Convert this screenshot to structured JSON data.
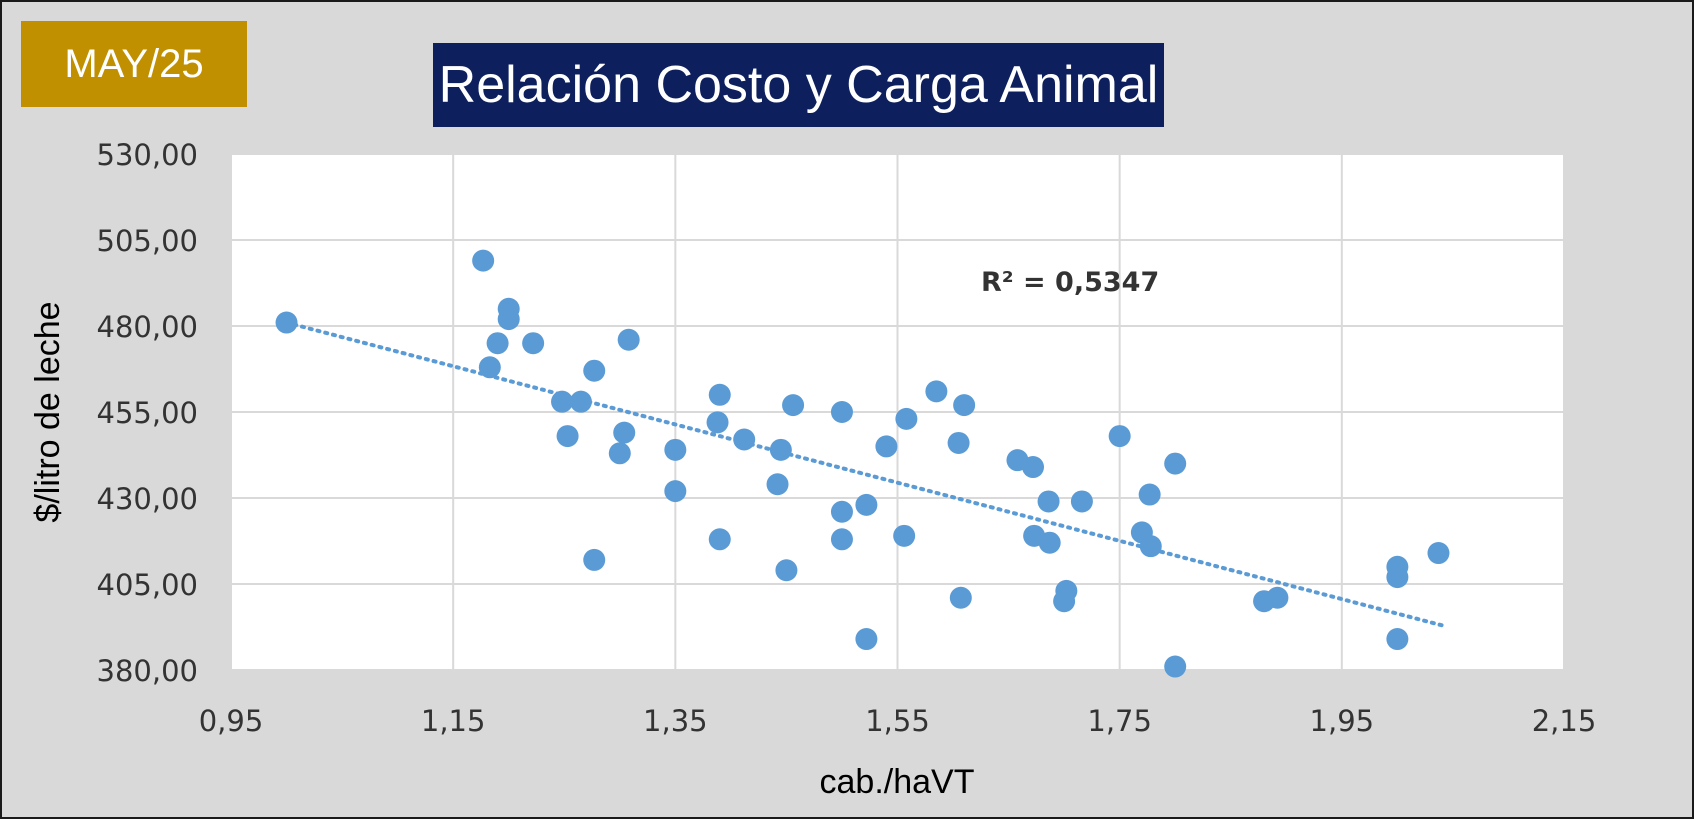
{
  "badge": "MAY/25",
  "title": "Relación Costo y Carga Animal",
  "colors": {
    "badge_bg": "#c09000",
    "title_bg": "#0d1f5c",
    "points": "#5b9bd5",
    "frame_bg": "#d9d9d9",
    "plot_bg": "#ffffff"
  },
  "chart_data": {
    "type": "scatter",
    "title": "Relación Costo y Carga Animal",
    "xlabel": "cab./haVT",
    "ylabel": "$/litro de leche",
    "xlim": [
      0.95,
      2.15
    ],
    "ylim": [
      380,
      530
    ],
    "x_ticks": [
      0.95,
      1.15,
      1.35,
      1.55,
      1.75,
      1.95,
      2.15
    ],
    "y_ticks": [
      380,
      405,
      430,
      455,
      480,
      505,
      530
    ],
    "x_tick_labels": [
      "0,95",
      "1,15",
      "1,35",
      "1,55",
      "1,75",
      "1,95",
      "2,15"
    ],
    "y_tick_labels": [
      "380,00",
      "405,00",
      "430,00",
      "455,00",
      "480,00",
      "505,00",
      "530,00"
    ],
    "grid": true,
    "trendline": {
      "type": "linear",
      "style": "dotted",
      "x_start": 1.0,
      "y_start": 481,
      "x_end": 2.04,
      "y_end": 393
    },
    "annotation": "R² = 0,5347",
    "points": [
      [
        1.0,
        481
      ],
      [
        1.177,
        499
      ],
      [
        1.183,
        468
      ],
      [
        1.19,
        475
      ],
      [
        1.2,
        485
      ],
      [
        1.2,
        482
      ],
      [
        1.222,
        475
      ],
      [
        1.248,
        458
      ],
      [
        1.253,
        448
      ],
      [
        1.265,
        458
      ],
      [
        1.277,
        467
      ],
      [
        1.277,
        412
      ],
      [
        1.3,
        443
      ],
      [
        1.304,
        449
      ],
      [
        1.308,
        476
      ],
      [
        1.35,
        444
      ],
      [
        1.35,
        432
      ],
      [
        1.388,
        452
      ],
      [
        1.39,
        460
      ],
      [
        1.39,
        418
      ],
      [
        1.412,
        447
      ],
      [
        1.442,
        434
      ],
      [
        1.445,
        444
      ],
      [
        1.45,
        409
      ],
      [
        1.456,
        457
      ],
      [
        1.5,
        455
      ],
      [
        1.5,
        426
      ],
      [
        1.5,
        418
      ],
      [
        1.522,
        428
      ],
      [
        1.522,
        389
      ],
      [
        1.54,
        445
      ],
      [
        1.556,
        419
      ],
      [
        1.558,
        453
      ],
      [
        1.585,
        461
      ],
      [
        1.605,
        446
      ],
      [
        1.607,
        401
      ],
      [
        1.61,
        457
      ],
      [
        1.658,
        441
      ],
      [
        1.672,
        439
      ],
      [
        1.673,
        419
      ],
      [
        1.686,
        429
      ],
      [
        1.687,
        417
      ],
      [
        1.7,
        400
      ],
      [
        1.702,
        403
      ],
      [
        1.716,
        429
      ],
      [
        1.75,
        448
      ],
      [
        1.77,
        420
      ],
      [
        1.777,
        431
      ],
      [
        1.778,
        416
      ],
      [
        1.8,
        440
      ],
      [
        1.8,
        381
      ],
      [
        1.88,
        400
      ],
      [
        1.892,
        401
      ],
      [
        2.0,
        410
      ],
      [
        2.0,
        407
      ],
      [
        2.0,
        389
      ],
      [
        2.037,
        414
      ]
    ]
  }
}
